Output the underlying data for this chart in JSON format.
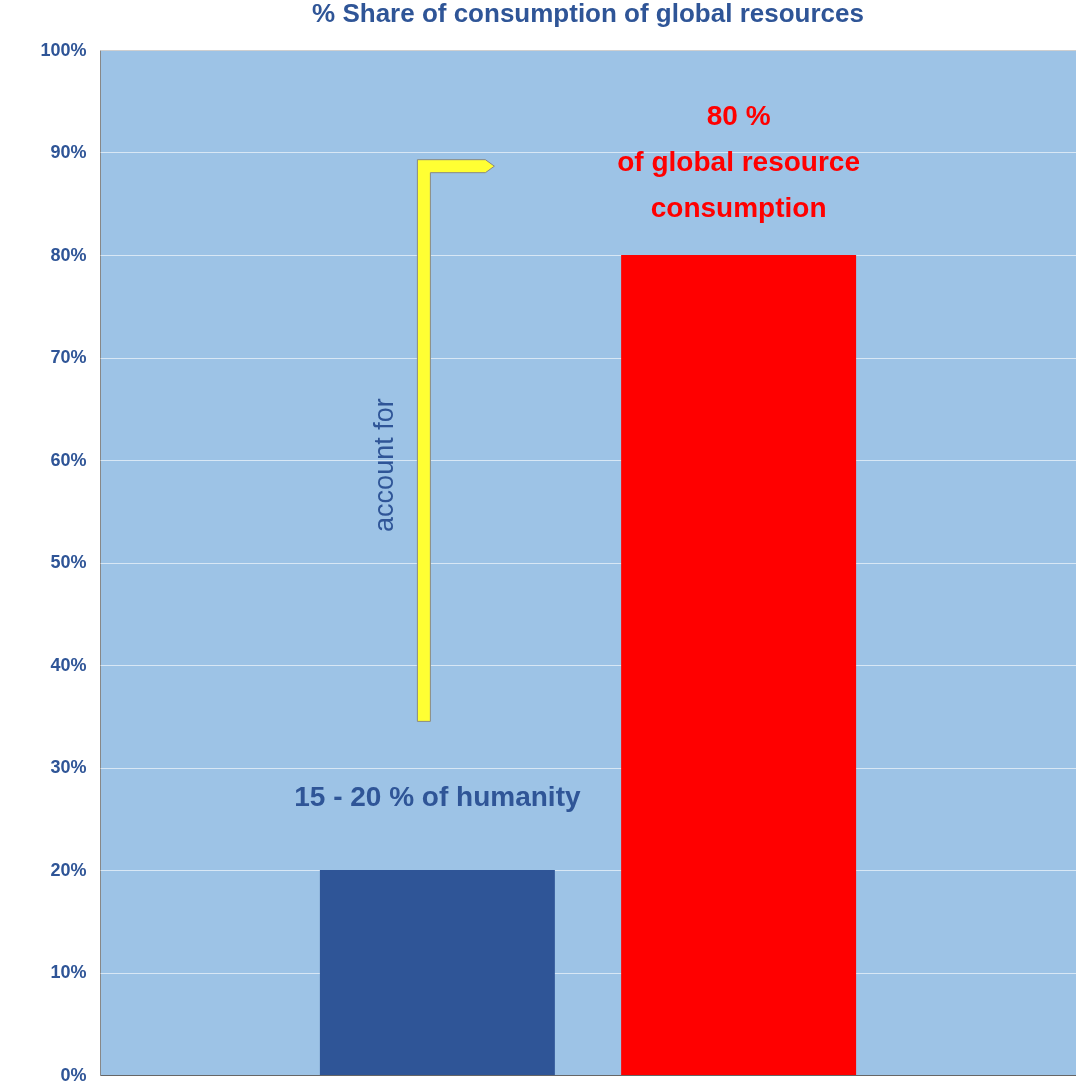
{
  "chart_data": {
    "type": "bar",
    "title": "% Share of consumption of global resources",
    "categories": [
      null,
      null
    ],
    "values": [
      20,
      80
    ],
    "colors": [
      "#2f5597",
      "#ff0000"
    ],
    "ylim": [
      0,
      100
    ],
    "yticks": [
      {
        "value": 0,
        "label": "0%"
      },
      {
        "value": 10,
        "label": "10%"
      },
      {
        "value": 20,
        "label": "20%"
      },
      {
        "value": 30,
        "label": "30%"
      },
      {
        "value": 40,
        "label": "40%"
      },
      {
        "value": 50,
        "label": "50%"
      },
      {
        "value": 60,
        "label": "60%"
      },
      {
        "value": 70,
        "label": "70%"
      },
      {
        "value": 80,
        "label": "80%"
      },
      {
        "value": 90,
        "label": "90%"
      },
      {
        "value": 100,
        "label": "100%"
      }
    ],
    "grid": "y",
    "annotations": [
      "15 - 20 % of humanity",
      "80 %\nof global resource\nconsumption",
      "account for"
    ]
  }
}
